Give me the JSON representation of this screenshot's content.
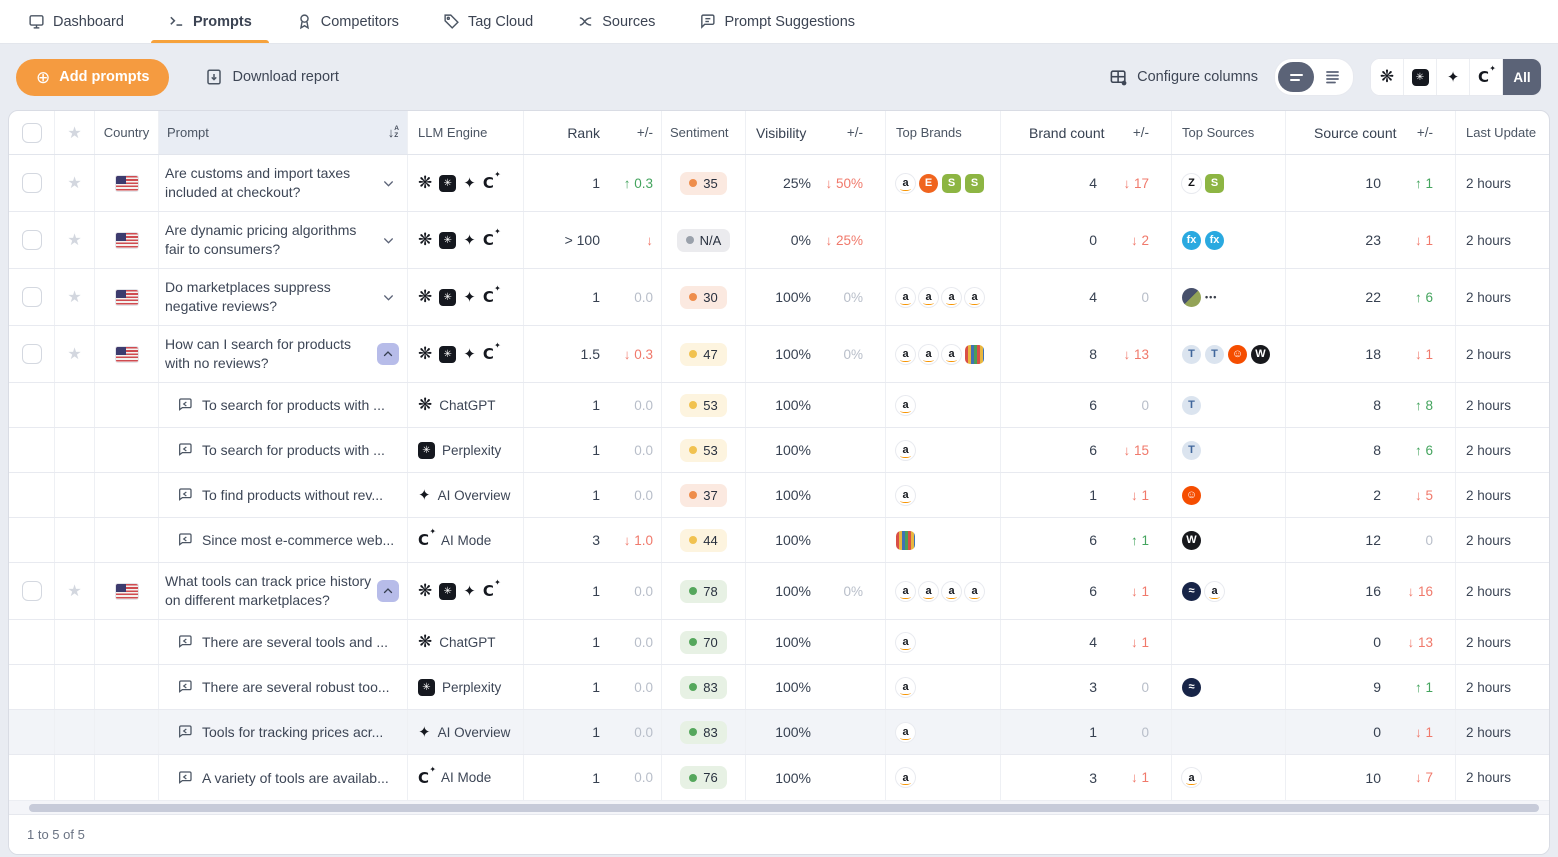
{
  "nav": {
    "tabs": [
      {
        "label": "Dashboard",
        "icon": "monitor-icon",
        "active": false
      },
      {
        "label": "Prompts",
        "icon": "terminal-icon",
        "active": true
      },
      {
        "label": "Competitors",
        "icon": "award-icon",
        "active": false
      },
      {
        "label": "Tag Cloud",
        "icon": "tag-icon",
        "active": false
      },
      {
        "label": "Sources",
        "icon": "split-icon",
        "active": false
      },
      {
        "label": "Prompt Suggestions",
        "icon": "chat-icon",
        "active": false
      }
    ]
  },
  "toolbar": {
    "add_label": "Add prompts",
    "download_label": "Download report",
    "configure_label": "Configure columns",
    "all_label": "All",
    "accent_color": "#f59b40",
    "selected_color": "#5b6377"
  },
  "table": {
    "headers": {
      "country": "Country",
      "prompt": "Prompt",
      "llm": "LLM Engine",
      "rank": "Rank",
      "delta": "+/-",
      "sentiment": "Sentiment",
      "visibility": "Visibility",
      "top_brands": "Top Brands",
      "brand_count": "Brand count",
      "top_sources": "Top Sources",
      "source_count": "Source count",
      "last_update": "Last Update"
    },
    "sentiment_tones": {
      "orange": {
        "bg": "#fbe9e0",
        "dot": "#ee8d4b"
      },
      "yellow": {
        "bg": "#fdf4df",
        "dot": "#f1c250"
      },
      "green": {
        "bg": "#e7f1e4",
        "dot": "#55a75c"
      },
      "gray": {
        "bg": "#ebebee",
        "dot": "#9aa1ab"
      }
    },
    "delta_colors": {
      "up": "#44a45e",
      "down": "#f0796b",
      "none": "#b8bec9"
    },
    "icon_defs": {
      "amazon": {
        "glyph": "a",
        "bg": "#ffffff",
        "fg": "#16191f",
        "smile": true,
        "ring": true
      },
      "etsy": {
        "glyph": "E",
        "bg": "#f0641e",
        "fg": "#ffffff"
      },
      "shopify": {
        "glyph": "S",
        "bg": "#8db543",
        "fg": "#ffffff",
        "sq": true
      },
      "zonos": {
        "glyph": "Z",
        "bg": "#ffffff",
        "fg": "#101114",
        "ring": true
      },
      "ofx": {
        "glyph": "fx",
        "bg": "#2aa9e0",
        "fg": "#ffffff"
      },
      "site-olive": {
        "glyph": "",
        "bg": "linear-gradient(135deg,#47506b 0 50%,#93a357 50% 100%)",
        "fg": "#ffffff"
      },
      "more-dots": {
        "glyph": "•••",
        "bg": "transparent",
        "fg": "#3a3f4a",
        "plain": true
      },
      "shield": {
        "glyph": "T",
        "bg": "#dbe4ef",
        "fg": "#41679c"
      },
      "reddit": {
        "glyph": "☺",
        "bg": "#f54d00",
        "fg": "#ffffff"
      },
      "w-black": {
        "glyph": "W",
        "bg": "#17181c",
        "fg": "#ffffff"
      },
      "camel": {
        "glyph": "≈",
        "bg": "#172447",
        "fg": "#ffffff"
      },
      "striped-bag": {
        "glyph": "",
        "bg": "repeating-linear-gradient(90deg,#d94f46 0 3px,#e8b63f 3px 6px,#3f72b5 6px 9px,#4d9e57 9px 12px)",
        "fg": "#ffffff",
        "sq": true
      }
    },
    "engine_labels": {
      "chatgpt": "ChatGPT",
      "perplexity": "Perplexity",
      "ai-overview": "AI Overview",
      "ai-mode": "AI Mode"
    },
    "rows": [
      {
        "type": "main",
        "country": "US",
        "prompt": "Are customs and import taxes included at checkout?",
        "expanded": false,
        "engines": [
          "chatgpt",
          "perplexity",
          "ai-overview",
          "ai-mode"
        ],
        "rank": "1",
        "rank_delta": {
          "dir": "up",
          "text": "0.3"
        },
        "sentiment": {
          "value": "35",
          "tone": "orange"
        },
        "visibility": "25%",
        "visibility_delta": {
          "dir": "down",
          "text": "50%"
        },
        "brands": [
          "amazon",
          "etsy",
          "shopify",
          "shopify"
        ],
        "brand_count": "4",
        "brand_delta": {
          "dir": "down",
          "text": "17"
        },
        "sources": [
          "zonos",
          "shopify"
        ],
        "source_count": "10",
        "source_delta": {
          "dir": "up",
          "text": "1"
        },
        "last_update": "2 hours"
      },
      {
        "type": "main",
        "country": "US",
        "prompt": "Are dynamic pricing algorithms fair to consumers?",
        "expanded": false,
        "engines": [
          "chatgpt",
          "perplexity",
          "ai-overview",
          "ai-mode"
        ],
        "rank": "> 100",
        "rank_delta": {
          "dir": "down",
          "text": ""
        },
        "sentiment": {
          "value": "N/A",
          "tone": "gray"
        },
        "visibility": "0%",
        "visibility_delta": {
          "dir": "down",
          "text": "25%"
        },
        "brands": [],
        "brand_count": "0",
        "brand_delta": {
          "dir": "down",
          "text": "2"
        },
        "sources": [
          "ofx",
          "ofx"
        ],
        "source_count": "23",
        "source_delta": {
          "dir": "down",
          "text": "1"
        },
        "last_update": "2 hours"
      },
      {
        "type": "main",
        "country": "US",
        "prompt": "Do marketplaces suppress negative reviews?",
        "expanded": false,
        "engines": [
          "chatgpt",
          "perplexity",
          "ai-overview",
          "ai-mode"
        ],
        "rank": "1",
        "rank_delta": {
          "dir": "none",
          "text": "0.0"
        },
        "sentiment": {
          "value": "30",
          "tone": "orange"
        },
        "visibility": "100%",
        "visibility_delta": {
          "dir": "none",
          "text": "0%"
        },
        "brands": [
          "amazon",
          "amazon",
          "amazon",
          "amazon"
        ],
        "brand_count": "4",
        "brand_delta": {
          "dir": "none",
          "text": "0"
        },
        "sources": [
          "site-olive",
          "more-dots"
        ],
        "source_count": "22",
        "source_delta": {
          "dir": "up",
          "text": "6"
        },
        "last_update": "2 hours"
      },
      {
        "type": "main",
        "country": "US",
        "prompt": "How can I search for products with no reviews?",
        "expanded": true,
        "engines": [
          "chatgpt",
          "perplexity",
          "ai-overview",
          "ai-mode"
        ],
        "rank": "1.5",
        "rank_delta": {
          "dir": "down",
          "text": "0.3"
        },
        "sentiment": {
          "value": "47",
          "tone": "yellow"
        },
        "visibility": "100%",
        "visibility_delta": {
          "dir": "none",
          "text": "0%"
        },
        "brands": [
          "amazon",
          "amazon",
          "amazon",
          "striped-bag"
        ],
        "brand_count": "8",
        "brand_delta": {
          "dir": "down",
          "text": "13"
        },
        "sources": [
          "shield",
          "shield",
          "reddit",
          "w-black"
        ],
        "source_count": "18",
        "source_delta": {
          "dir": "down",
          "text": "1"
        },
        "last_update": "2 hours"
      },
      {
        "type": "sub",
        "prompt": "To search for products with ...",
        "engine": "chatgpt",
        "rank": "1",
        "rank_delta": {
          "dir": "none",
          "text": "0.0"
        },
        "sentiment": {
          "value": "53",
          "tone": "yellow"
        },
        "visibility": "100%",
        "visibility_delta": null,
        "brands": [
          "amazon"
        ],
        "brand_count": "6",
        "brand_delta": {
          "dir": "none",
          "text": "0"
        },
        "sources": [
          "shield"
        ],
        "source_count": "8",
        "source_delta": {
          "dir": "up",
          "text": "8"
        },
        "last_update": "2 hours"
      },
      {
        "type": "sub",
        "prompt": "To search for products with ...",
        "engine": "perplexity",
        "rank": "1",
        "rank_delta": {
          "dir": "none",
          "text": "0.0"
        },
        "sentiment": {
          "value": "53",
          "tone": "yellow"
        },
        "visibility": "100%",
        "visibility_delta": null,
        "brands": [
          "amazon"
        ],
        "brand_count": "6",
        "brand_delta": {
          "dir": "down",
          "text": "15"
        },
        "sources": [
          "shield"
        ],
        "source_count": "8",
        "source_delta": {
          "dir": "up",
          "text": "6"
        },
        "last_update": "2 hours"
      },
      {
        "type": "sub",
        "prompt": "To find products without rev...",
        "engine": "ai-overview",
        "rank": "1",
        "rank_delta": {
          "dir": "none",
          "text": "0.0"
        },
        "sentiment": {
          "value": "37",
          "tone": "orange"
        },
        "visibility": "100%",
        "visibility_delta": null,
        "brands": [
          "amazon"
        ],
        "brand_count": "1",
        "brand_delta": {
          "dir": "down",
          "text": "1"
        },
        "sources": [
          "reddit"
        ],
        "source_count": "2",
        "source_delta": {
          "dir": "down",
          "text": "5"
        },
        "last_update": "2 hours"
      },
      {
        "type": "sub",
        "prompt": "Since most e-commerce web...",
        "engine": "ai-mode",
        "rank": "3",
        "rank_delta": {
          "dir": "down",
          "text": "1.0"
        },
        "sentiment": {
          "value": "44",
          "tone": "yellow"
        },
        "visibility": "100%",
        "visibility_delta": null,
        "brands": [
          "striped-bag"
        ],
        "brand_count": "6",
        "brand_delta": {
          "dir": "up",
          "text": "1"
        },
        "sources": [
          "w-black"
        ],
        "source_count": "12",
        "source_delta": {
          "dir": "none",
          "text": "0"
        },
        "last_update": "2 hours"
      },
      {
        "type": "main",
        "country": "US",
        "prompt": "What tools can track price history on different marketplaces?",
        "expanded": true,
        "engines": [
          "chatgpt",
          "perplexity",
          "ai-overview",
          "ai-mode"
        ],
        "rank": "1",
        "rank_delta": {
          "dir": "none",
          "text": "0.0"
        },
        "sentiment": {
          "value": "78",
          "tone": "green"
        },
        "visibility": "100%",
        "visibility_delta": {
          "dir": "none",
          "text": "0%"
        },
        "brands": [
          "amazon",
          "amazon",
          "amazon",
          "amazon"
        ],
        "brand_count": "6",
        "brand_delta": {
          "dir": "down",
          "text": "1"
        },
        "sources": [
          "camel",
          "amazon"
        ],
        "source_count": "16",
        "source_delta": {
          "dir": "down",
          "text": "16"
        },
        "last_update": "2 hours"
      },
      {
        "type": "sub",
        "prompt": "There are several tools and ...",
        "engine": "chatgpt",
        "rank": "1",
        "rank_delta": {
          "dir": "none",
          "text": "0.0"
        },
        "sentiment": {
          "value": "70",
          "tone": "green"
        },
        "visibility": "100%",
        "visibility_delta": null,
        "brands": [
          "amazon"
        ],
        "brand_count": "4",
        "brand_delta": {
          "dir": "down",
          "text": "1"
        },
        "sources": [],
        "source_count": "0",
        "source_delta": {
          "dir": "down",
          "text": "13"
        },
        "last_update": "2 hours"
      },
      {
        "type": "sub",
        "prompt": "There are several robust too...",
        "engine": "perplexity",
        "rank": "1",
        "rank_delta": {
          "dir": "none",
          "text": "0.0"
        },
        "sentiment": {
          "value": "83",
          "tone": "green"
        },
        "visibility": "100%",
        "visibility_delta": null,
        "brands": [
          "amazon"
        ],
        "brand_count": "3",
        "brand_delta": {
          "dir": "none",
          "text": "0"
        },
        "sources": [
          "camel"
        ],
        "source_count": "9",
        "source_delta": {
          "dir": "up",
          "text": "1"
        },
        "last_update": "2 hours"
      },
      {
        "type": "sub",
        "prompt": "Tools for tracking prices acr...",
        "engine": "ai-overview",
        "highlighted": true,
        "rank": "1",
        "rank_delta": {
          "dir": "none",
          "text": "0.0"
        },
        "sentiment": {
          "value": "83",
          "tone": "green"
        },
        "visibility": "100%",
        "visibility_delta": null,
        "brands": [
          "amazon"
        ],
        "brand_count": "1",
        "brand_delta": {
          "dir": "none",
          "text": "0"
        },
        "sources": [],
        "source_count": "0",
        "source_delta": {
          "dir": "down",
          "text": "1"
        },
        "last_update": "2 hours"
      },
      {
        "type": "sub",
        "prompt": "A variety of tools are availab...",
        "engine": "ai-mode",
        "rank": "1",
        "rank_delta": {
          "dir": "none",
          "text": "0.0"
        },
        "sentiment": {
          "value": "76",
          "tone": "green"
        },
        "visibility": "100%",
        "visibility_delta": null,
        "brands": [
          "amazon"
        ],
        "brand_count": "3",
        "brand_delta": {
          "dir": "down",
          "text": "1"
        },
        "sources": [
          "amazon"
        ],
        "source_count": "10",
        "source_delta": {
          "dir": "down",
          "text": "7"
        },
        "last_update": "2 hours"
      }
    ]
  },
  "footer": {
    "range": "1 to 5 of 5"
  }
}
